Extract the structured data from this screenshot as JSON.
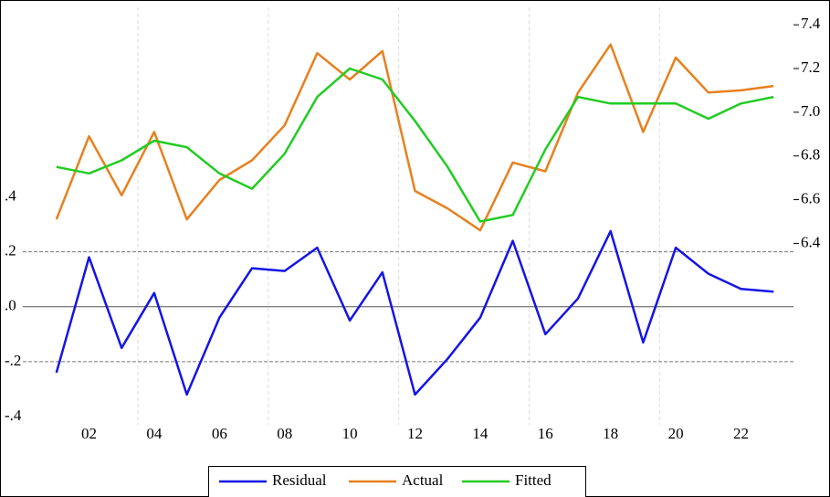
{
  "chart_data": {
    "type": "line",
    "categories": [
      null,
      "02",
      null,
      "04",
      null,
      "06",
      null,
      "08",
      null,
      "10",
      null,
      "12",
      null,
      "14",
      null,
      "16",
      null,
      "18",
      null,
      "20",
      null,
      "22",
      null
    ],
    "series": [
      {
        "name": "Residual",
        "color": "#1414e6",
        "axis": "y",
        "values": [
          -0.24,
          0.18,
          -0.15,
          0.05,
          -0.32,
          -0.04,
          0.14,
          0.13,
          0.215,
          -0.05,
          0.125,
          -0.32,
          -0.19,
          -0.04,
          0.24,
          -0.1,
          0.03,
          0.275,
          -0.13,
          0.215,
          0.12,
          0.065,
          0.055
        ]
      },
      {
        "name": "Actual",
        "color": "#e8801e",
        "axis": "y2",
        "values": [
          6.51,
          6.89,
          6.62,
          6.91,
          6.51,
          6.69,
          6.78,
          6.94,
          7.27,
          7.15,
          7.28,
          6.64,
          6.56,
          6.46,
          6.77,
          6.73,
          7.09,
          7.31,
          6.91,
          7.25,
          7.09,
          7.1,
          7.12
        ]
      },
      {
        "name": "Fitted",
        "color": "#22cc22",
        "axis": "y2",
        "values": [
          6.75,
          6.72,
          6.78,
          6.87,
          6.84,
          6.72,
          6.65,
          6.81,
          7.07,
          7.2,
          7.15,
          6.96,
          6.75,
          6.5,
          6.53,
          6.83,
          7.07,
          7.04,
          7.04,
          7.04,
          6.97,
          7.04,
          7.07
        ]
      }
    ],
    "ylim": [
      -0.43,
      1.09
    ],
    "yticks": [
      {
        "value": -0.4,
        "label": "-.4"
      },
      {
        "value": -0.2,
        "label": "-.2"
      },
      {
        "value": 0,
        "label": ".0"
      },
      {
        "value": 0.2,
        "label": ".2"
      },
      {
        "value": 0.4,
        "label": ".4"
      }
    ],
    "y2lim": [
      5.57,
      7.48
    ],
    "y2ticks": [
      6.4,
      6.6,
      6.8,
      {
        "value": 7,
        "label": "7.0"
      },
      7.2,
      7.4
    ],
    "legend": "bottom"
  }
}
